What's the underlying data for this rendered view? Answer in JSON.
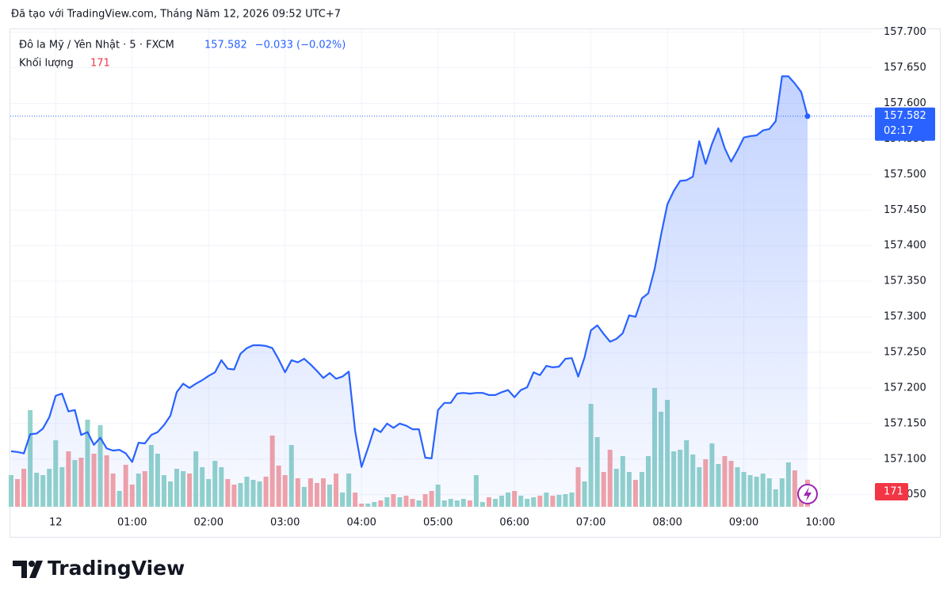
{
  "header": "Đã tạo với TradingView.com, Tháng Năm 12, 2026 09:52 UTC+7",
  "brand": "TradingView",
  "chart_data": {
    "type": "line",
    "categories": [
      null,
      null,
      null,
      null,
      null,
      null,
      null,
      "12",
      null,
      null,
      null,
      null,
      null,
      null,
      null,
      null,
      null,
      null,
      null,
      "01:00",
      null,
      null,
      null,
      null,
      null,
      null,
      null,
      null,
      null,
      null,
      null,
      "02:00",
      null,
      null,
      null,
      null,
      null,
      null,
      null,
      null,
      null,
      null,
      null,
      "03:00",
      null,
      null,
      null,
      null,
      null,
      null,
      null,
      null,
      null,
      null,
      null,
      "04:00",
      null,
      null,
      null,
      null,
      null,
      null,
      null,
      null,
      null,
      null,
      null,
      "05:00",
      null,
      null,
      null,
      null,
      null,
      null,
      null,
      null,
      null,
      null,
      null,
      "06:00",
      null,
      null,
      null,
      null,
      null,
      null,
      null,
      null,
      null,
      null,
      null,
      "07:00",
      null,
      null,
      null,
      null,
      null,
      null,
      null,
      null,
      null,
      null,
      null,
      "08:00",
      null,
      null,
      null,
      null,
      null,
      null,
      null,
      null,
      null,
      null,
      null,
      "09:00",
      null,
      null,
      null,
      null,
      null,
      null,
      null,
      null,
      null,
      null,
      null,
      "10:00"
    ],
    "series": [
      {
        "name": "Đô la Mỹ / Yên Nhật · 5 · FXCM",
        "color": "#2962ff",
        "change": "−0.033 (−0.02%)",
        "values": [
          157.111,
          157.11,
          157.108,
          157.135,
          157.136,
          157.143,
          157.159,
          157.189,
          157.192,
          157.167,
          157.169,
          157.134,
          157.138,
          157.12,
          157.13,
          157.115,
          157.112,
          157.113,
          157.108,
          157.096,
          157.123,
          157.122,
          157.134,
          157.138,
          157.148,
          157.161,
          157.194,
          157.206,
          157.2,
          157.206,
          157.211,
          157.217,
          157.222,
          157.239,
          157.227,
          157.226,
          157.248,
          157.256,
          157.26,
          157.26,
          157.259,
          157.256,
          157.24,
          157.222,
          157.239,
          157.236,
          157.241,
          157.233,
          157.224,
          157.214,
          157.221,
          157.213,
          157.216,
          157.223,
          157.139,
          157.089,
          157.115,
          157.143,
          157.138,
          157.15,
          157.144,
          157.15,
          157.147,
          157.142,
          157.142,
          157.102,
          157.101,
          157.169,
          157.179,
          157.179,
          157.192,
          157.193,
          157.192,
          157.193,
          157.193,
          157.19,
          157.19,
          157.194,
          157.197,
          157.187,
          157.197,
          157.201,
          157.222,
          157.218,
          157.231,
          157.229,
          157.23,
          157.241,
          157.242,
          157.216,
          157.243,
          157.281,
          157.288,
          157.276,
          157.265,
          157.269,
          157.277,
          157.302,
          157.3,
          157.326,
          157.333,
          157.367,
          157.415,
          157.458,
          157.477,
          157.491,
          157.492,
          157.497,
          157.547,
          157.515,
          157.543,
          157.565,
          157.537,
          157.518,
          157.534,
          157.552,
          157.554,
          157.555,
          157.562,
          157.564,
          157.575,
          157.638,
          157.638,
          157.628,
          157.616,
          157.582,
          null,
          null
        ]
      },
      {
        "name": "Khối lượng",
        "type": "bar",
        "up_color": "#93d3cb",
        "down_color": "#f5a3a6",
        "label_color": "#f23645",
        "values": [
          200,
          175,
          240,
          610,
          215,
          200,
          240,
          420,
          250,
          350,
          295,
          310,
          550,
          335,
          515,
          325,
          210,
          100,
          265,
          140,
          210,
          225,
          390,
          335,
          200,
          160,
          240,
          225,
          210,
          350,
          250,
          175,
          290,
          250,
          175,
          140,
          150,
          190,
          170,
          160,
          190,
          450,
          260,
          200,
          390,
          180,
          125,
          180,
          150,
          180,
          140,
          210,
          90,
          210,
          90,
          20,
          20,
          30,
          40,
          60,
          80,
          60,
          70,
          50,
          40,
          80,
          100,
          140,
          40,
          50,
          40,
          50,
          40,
          200,
          30,
          60,
          50,
          70,
          90,
          100,
          70,
          50,
          60,
          70,
          90,
          70,
          75,
          80,
          90,
          250,
          160,
          650,
          440,
          220,
          360,
          240,
          320,
          220,
          170,
          220,
          320,
          750,
          600,
          675,
          350,
          360,
          420,
          330,
          250,
          300,
          400,
          270,
          320,
          290,
          250,
          220,
          200,
          190,
          210,
          180,
          110,
          180,
          280,
          230,
          110,
          171,
          null,
          null
        ]
      }
    ],
    "countdown": "02:17",
    "ylim": [
      157.033,
      157.703
    ],
    "yticks": [
      {
        "value": 157.05,
        "label": "157.050"
      },
      {
        "value": 157.1,
        "label": "157.100"
      },
      {
        "value": 157.15,
        "label": "157.150"
      },
      {
        "value": 157.2,
        "label": "157.200"
      },
      {
        "value": 157.25,
        "label": "157.250"
      },
      {
        "value": 157.3,
        "label": "157.300"
      },
      {
        "value": 157.35,
        "label": "157.350"
      },
      {
        "value": 157.4,
        "label": "157.400"
      },
      {
        "value": 157.45,
        "label": "157.450"
      },
      {
        "value": 157.5,
        "label": "157.500"
      },
      {
        "value": 157.55,
        "label": "157.550"
      },
      {
        "value": 157.6,
        "label": "157.600"
      },
      {
        "value": 157.65,
        "label": "157.650"
      },
      {
        "value": 157.7,
        "label": "157.700"
      }
    ],
    "grid": true
  }
}
